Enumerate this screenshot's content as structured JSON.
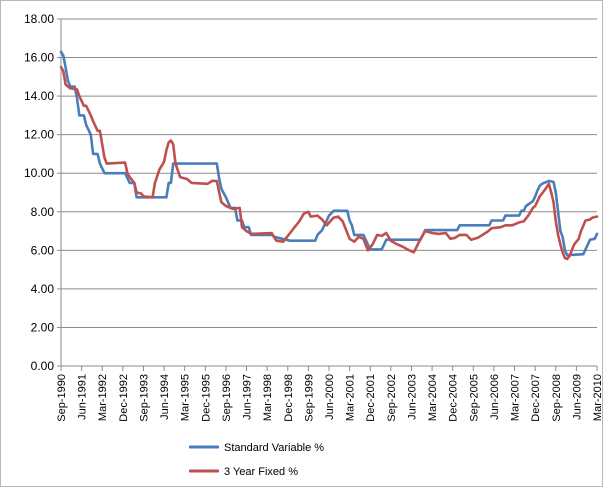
{
  "chart_data": {
    "type": "line",
    "title": "",
    "xlabel": "",
    "ylabel": "",
    "ylim": [
      0,
      18
    ],
    "y_ticks": [
      "0.00",
      "2.00",
      "4.00",
      "6.00",
      "8.00",
      "10.00",
      "12.00",
      "14.00",
      "16.00",
      "18.00"
    ],
    "x_range": [
      "1990-09",
      "2010-03"
    ],
    "x_ticks": [
      {
        "label": "Sep-1990",
        "date": "1990-09"
      },
      {
        "label": "Jun-1991",
        "date": "1991-06"
      },
      {
        "label": "Mar-1992",
        "date": "1992-03"
      },
      {
        "label": "Dec-1992",
        "date": "1992-12"
      },
      {
        "label": "Sep-1993",
        "date": "1993-09"
      },
      {
        "label": "Jun-1994",
        "date": "1994-06"
      },
      {
        "label": "Mar-1995",
        "date": "1995-03"
      },
      {
        "label": "Dec-1995",
        "date": "1995-12"
      },
      {
        "label": "Sep-1996",
        "date": "1996-09"
      },
      {
        "label": "Jun-1997",
        "date": "1997-06"
      },
      {
        "label": "Mar-1998",
        "date": "1998-03"
      },
      {
        "label": "Dec-1998",
        "date": "1998-12"
      },
      {
        "label": "Sep-1999",
        "date": "1999-09"
      },
      {
        "label": "Jun-2000",
        "date": "2000-06"
      },
      {
        "label": "Mar-2001",
        "date": "2001-03"
      },
      {
        "label": "Dec-2001",
        "date": "2001-12"
      },
      {
        "label": "Sep-2002",
        "date": "2002-09"
      },
      {
        "label": "Jun-2003",
        "date": "2003-06"
      },
      {
        "label": "Mar-2004",
        "date": "2004-03"
      },
      {
        "label": "Dec-2004",
        "date": "2004-12"
      },
      {
        "label": "Sep-2005",
        "date": "2005-09"
      },
      {
        "label": "Jun-2006",
        "date": "2006-06"
      },
      {
        "label": "Mar-2007",
        "date": "2007-03"
      },
      {
        "label": "Dec-2007",
        "date": "2007-12"
      },
      {
        "label": "Sep-2008",
        "date": "2008-09"
      },
      {
        "label": "Jun-2009",
        "date": "2009-06"
      },
      {
        "label": "Mar-2010",
        "date": "2010-03"
      }
    ],
    "grid": "horizontal",
    "legend_position": "bottom",
    "series": [
      {
        "name": "Standard Variable %",
        "color": "#4a7ebb",
        "points": [
          [
            "1990-09",
            16.3
          ],
          [
            "1990-10",
            16.1
          ],
          [
            "1990-11",
            15.5
          ],
          [
            "1990-12",
            14.8
          ],
          [
            "1991-01",
            14.5
          ],
          [
            "1991-03",
            14.5
          ],
          [
            "1991-04",
            13.9
          ],
          [
            "1991-05",
            13.0
          ],
          [
            "1991-07",
            13.0
          ],
          [
            "1991-08",
            12.5
          ],
          [
            "1991-10",
            12.0
          ],
          [
            "1991-11",
            11.0
          ],
          [
            "1992-01",
            11.0
          ],
          [
            "1992-02",
            10.5
          ],
          [
            "1992-04",
            10.0
          ],
          [
            "1992-12",
            10.0
          ],
          [
            "1993-01",
            10.0
          ],
          [
            "1993-03",
            9.5
          ],
          [
            "1993-05",
            9.5
          ],
          [
            "1993-06",
            8.75
          ],
          [
            "1994-07",
            8.75
          ],
          [
            "1994-08",
            9.5
          ],
          [
            "1994-09",
            9.5
          ],
          [
            "1994-10",
            10.5
          ],
          [
            "1996-05",
            10.5
          ],
          [
            "1996-06",
            9.75
          ],
          [
            "1996-07",
            9.2
          ],
          [
            "1996-09",
            8.75
          ],
          [
            "1996-11",
            8.2
          ],
          [
            "1997-01",
            8.2
          ],
          [
            "1997-02",
            7.55
          ],
          [
            "1997-04",
            7.55
          ],
          [
            "1997-05",
            7.2
          ],
          [
            "1997-07",
            7.2
          ],
          [
            "1997-08",
            6.8
          ],
          [
            "1998-05",
            6.8
          ],
          [
            "1998-06",
            6.7
          ],
          [
            "1999-01",
            6.5
          ],
          [
            "1999-12",
            6.5
          ],
          [
            "2000-01",
            6.8
          ],
          [
            "2000-03",
            7.05
          ],
          [
            "2000-04",
            7.3
          ],
          [
            "2000-05",
            7.55
          ],
          [
            "2000-06",
            7.8
          ],
          [
            "2000-08",
            8.05
          ],
          [
            "2001-02",
            8.05
          ],
          [
            "2001-03",
            7.55
          ],
          [
            "2001-04",
            7.3
          ],
          [
            "2001-05",
            6.8
          ],
          [
            "2001-09",
            6.8
          ],
          [
            "2001-10",
            6.55
          ],
          [
            "2001-11",
            6.3
          ],
          [
            "2001-12",
            6.05
          ],
          [
            "2002-05",
            6.05
          ],
          [
            "2002-06",
            6.3
          ],
          [
            "2002-07",
            6.55
          ],
          [
            "2003-10",
            6.55
          ],
          [
            "2003-11",
            6.8
          ],
          [
            "2003-12",
            7.05
          ],
          [
            "2005-02",
            7.05
          ],
          [
            "2005-03",
            7.3
          ],
          [
            "2006-04",
            7.3
          ],
          [
            "2006-05",
            7.55
          ],
          [
            "2006-10",
            7.55
          ],
          [
            "2006-11",
            7.8
          ],
          [
            "2007-05",
            7.8
          ],
          [
            "2007-06",
            8.05
          ],
          [
            "2007-07",
            8.05
          ],
          [
            "2007-08",
            8.3
          ],
          [
            "2007-11",
            8.55
          ],
          [
            "2007-12",
            8.8
          ],
          [
            "2008-01",
            9.1
          ],
          [
            "2008-02",
            9.35
          ],
          [
            "2008-03",
            9.45
          ],
          [
            "2008-06",
            9.6
          ],
          [
            "2008-08",
            9.55
          ],
          [
            "2008-09",
            9.0
          ],
          [
            "2008-10",
            8.0
          ],
          [
            "2008-11",
            7.0
          ],
          [
            "2008-12",
            6.7
          ],
          [
            "2009-01",
            6.0
          ],
          [
            "2009-02",
            5.75
          ],
          [
            "2009-09",
            5.8
          ],
          [
            "2009-10",
            6.05
          ],
          [
            "2009-11",
            6.3
          ],
          [
            "2009-12",
            6.55
          ],
          [
            "2010-02",
            6.6
          ],
          [
            "2010-03",
            6.85
          ]
        ]
      },
      {
        "name": "3 Year Fixed %",
        "color": "#c0504d",
        "points": [
          [
            "1990-09",
            15.5
          ],
          [
            "1990-10",
            15.3
          ],
          [
            "1990-11",
            14.6
          ],
          [
            "1991-01",
            14.4
          ],
          [
            "1991-04",
            14.35
          ],
          [
            "1991-05",
            14.0
          ],
          [
            "1991-07",
            13.5
          ],
          [
            "1991-08",
            13.5
          ],
          [
            "1991-10",
            13.0
          ],
          [
            "1991-11",
            12.7
          ],
          [
            "1992-01",
            12.2
          ],
          [
            "1992-02",
            12.2
          ],
          [
            "1992-03",
            11.5
          ],
          [
            "1992-04",
            10.8
          ],
          [
            "1992-05",
            10.5
          ],
          [
            "1993-01",
            10.55
          ],
          [
            "1993-02",
            10.0
          ],
          [
            "1993-03",
            9.8
          ],
          [
            "1993-05",
            9.5
          ],
          [
            "1993-06",
            9.0
          ],
          [
            "1993-08",
            8.95
          ],
          [
            "1993-09",
            8.8
          ],
          [
            "1994-01",
            8.75
          ],
          [
            "1994-02",
            9.5
          ],
          [
            "1994-04",
            10.2
          ],
          [
            "1994-06",
            10.6
          ],
          [
            "1994-07",
            11.2
          ],
          [
            "1994-08",
            11.6
          ],
          [
            "1994-09",
            11.7
          ],
          [
            "1994-10",
            11.5
          ],
          [
            "1994-11",
            10.5
          ],
          [
            "1995-01",
            9.8
          ],
          [
            "1995-04",
            9.7
          ],
          [
            "1995-06",
            9.5
          ],
          [
            "1996-01",
            9.45
          ],
          [
            "1996-03",
            9.6
          ],
          [
            "1996-05",
            9.6
          ],
          [
            "1996-07",
            8.5
          ],
          [
            "1996-09",
            8.3
          ],
          [
            "1996-12",
            8.15
          ],
          [
            "1997-03",
            8.2
          ],
          [
            "1997-04",
            7.2
          ],
          [
            "1997-06",
            7.0
          ],
          [
            "1997-08",
            6.85
          ],
          [
            "1998-05",
            6.9
          ],
          [
            "1998-07",
            6.5
          ],
          [
            "1998-10",
            6.45
          ],
          [
            "1999-01",
            6.9
          ],
          [
            "1999-03",
            7.2
          ],
          [
            "1999-05",
            7.5
          ],
          [
            "1999-07",
            7.9
          ],
          [
            "1999-09",
            8.0
          ],
          [
            "1999-10",
            7.75
          ],
          [
            "2000-01",
            7.8
          ],
          [
            "2000-03",
            7.6
          ],
          [
            "2000-05",
            7.3
          ],
          [
            "2000-08",
            7.7
          ],
          [
            "2000-10",
            7.75
          ],
          [
            "2000-12",
            7.5
          ],
          [
            "2001-03",
            6.6
          ],
          [
            "2001-05",
            6.45
          ],
          [
            "2001-07",
            6.7
          ],
          [
            "2001-09",
            6.6
          ],
          [
            "2001-10",
            6.3
          ],
          [
            "2001-11",
            6.0
          ],
          [
            "2002-01",
            6.3
          ],
          [
            "2002-03",
            6.8
          ],
          [
            "2002-05",
            6.75
          ],
          [
            "2002-07",
            6.9
          ],
          [
            "2002-09",
            6.5
          ],
          [
            "2002-12",
            6.3
          ],
          [
            "2003-02",
            6.2
          ],
          [
            "2003-05",
            6.0
          ],
          [
            "2003-07",
            5.9
          ],
          [
            "2003-10",
            6.6
          ],
          [
            "2003-12",
            7.0
          ],
          [
            "2004-03",
            6.9
          ],
          [
            "2004-06",
            6.85
          ],
          [
            "2004-09",
            6.9
          ],
          [
            "2004-11",
            6.6
          ],
          [
            "2005-01",
            6.65
          ],
          [
            "2005-03",
            6.8
          ],
          [
            "2005-06",
            6.8
          ],
          [
            "2005-08",
            6.55
          ],
          [
            "2005-11",
            6.65
          ],
          [
            "2006-01",
            6.8
          ],
          [
            "2006-03",
            6.95
          ],
          [
            "2006-05",
            7.15
          ],
          [
            "2006-09",
            7.2
          ],
          [
            "2006-11",
            7.3
          ],
          [
            "2007-02",
            7.3
          ],
          [
            "2007-05",
            7.45
          ],
          [
            "2007-07",
            7.5
          ],
          [
            "2007-09",
            7.8
          ],
          [
            "2007-11",
            8.2
          ],
          [
            "2007-12",
            8.3
          ],
          [
            "2008-02",
            8.8
          ],
          [
            "2008-04",
            9.1
          ],
          [
            "2008-06",
            9.45
          ],
          [
            "2008-07",
            9.0
          ],
          [
            "2008-08",
            8.5
          ],
          [
            "2008-09",
            7.5
          ],
          [
            "2008-10",
            6.8
          ],
          [
            "2008-11",
            6.3
          ],
          [
            "2008-12",
            5.9
          ],
          [
            "2009-01",
            5.6
          ],
          [
            "2009-02",
            5.55
          ],
          [
            "2009-03",
            5.7
          ],
          [
            "2009-04",
            6.0
          ],
          [
            "2009-05",
            6.3
          ],
          [
            "2009-07",
            6.6
          ],
          [
            "2009-08",
            7.0
          ],
          [
            "2009-10",
            7.55
          ],
          [
            "2009-12",
            7.6
          ],
          [
            "2010-01",
            7.7
          ],
          [
            "2010-03",
            7.75
          ]
        ]
      }
    ]
  }
}
